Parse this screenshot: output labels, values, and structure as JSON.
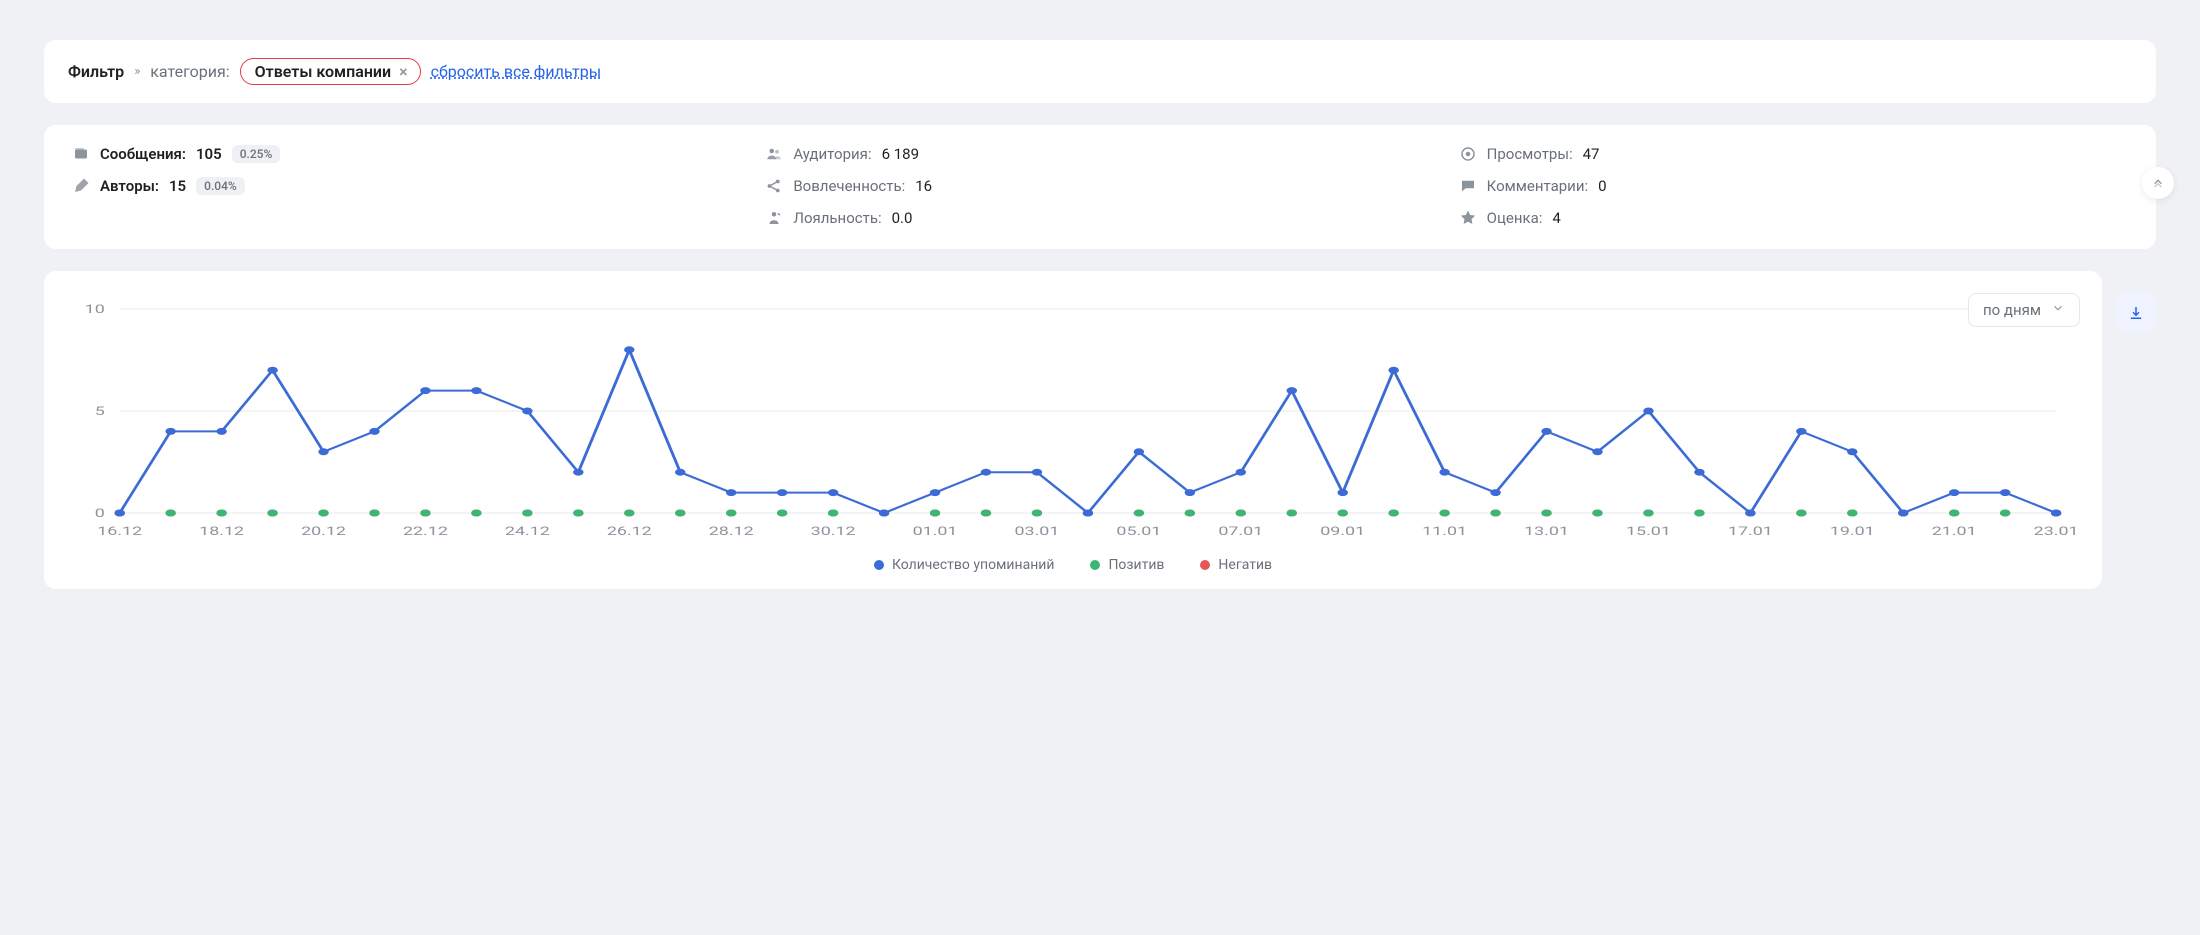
{
  "filter": {
    "title": "Фильтр",
    "category_label": "категория:",
    "chip_text": "Ответы компании",
    "reset_label": "сбросить все фильтры"
  },
  "stats": {
    "messages": {
      "label": "Сообщения:",
      "value": "105",
      "badge": "0.25%"
    },
    "audience": {
      "label": "Аудитория:",
      "value": "6 189"
    },
    "views": {
      "label": "Просмотры:",
      "value": "47"
    },
    "authors": {
      "label": "Авторы:",
      "value": "15",
      "badge": "0.04%"
    },
    "engagement": {
      "label": "Вовлеченность:",
      "value": "16"
    },
    "comments": {
      "label": "Комментарии:",
      "value": "0"
    },
    "loyalty": {
      "label": "Лояльность:",
      "value": "0.0"
    },
    "rating": {
      "label": "Оценка:",
      "value": "4"
    }
  },
  "dropdown": {
    "label": "по дням"
  },
  "chart": {
    "type": "line",
    "ylim": [
      0,
      10
    ],
    "yticks": [
      0,
      5,
      10
    ],
    "ytick_labels": [
      "0",
      "5",
      "10"
    ],
    "x_count": 39,
    "x_labels": [
      "16.12",
      "",
      "18.12",
      "",
      "20.12",
      "",
      "22.12",
      "",
      "24.12",
      "",
      "26.12",
      "",
      "28.12",
      "",
      "30.12",
      "",
      "01.01",
      "",
      "03.01",
      "",
      "05.01",
      "",
      "07.01",
      "",
      "09.01",
      "",
      "11.01",
      "",
      "13.01",
      "",
      "15.01",
      "",
      "17.01",
      "",
      "19.01",
      "",
      "21.01",
      "",
      "23.01"
    ],
    "mentions": [
      0,
      4,
      4,
      7,
      3,
      4,
      6,
      6,
      5,
      2,
      8,
      2,
      1,
      1,
      1,
      0,
      1,
      2,
      2,
      0,
      3,
      1,
      2,
      6,
      1,
      7,
      2,
      1,
      4,
      3,
      5,
      2,
      0,
      4,
      3,
      0,
      1,
      1,
      0
    ],
    "positive": [
      0,
      0,
      0,
      0,
      0,
      0,
      0,
      0,
      0,
      0,
      0,
      0,
      0,
      0,
      0,
      0,
      0,
      0,
      0,
      0,
      0,
      0,
      0,
      0,
      0,
      0,
      0,
      0,
      0,
      0,
      0,
      0,
      0,
      0,
      0,
      0,
      0,
      0,
      0
    ],
    "negative": [
      0,
      0,
      0,
      0,
      0,
      0,
      0,
      0,
      0,
      0,
      0,
      0,
      0,
      0,
      0,
      0,
      0,
      0,
      0,
      0,
      0,
      0,
      0,
      0,
      0,
      0,
      0,
      0,
      0,
      0,
      0,
      0,
      0,
      0,
      0,
      0,
      0,
      0,
      0
    ],
    "colors": {
      "mentions": "#3d6bd6",
      "positive": "#3bb675",
      "negative": "#e45757",
      "grid": "#e7e9ee",
      "axis_text": "#8e949e",
      "bg": "#ffffff"
    },
    "legend": {
      "mentions": "Количество упоминаний",
      "positive": "Позитив",
      "negative": "Негатив"
    },
    "marker_radius": 3.5,
    "line_width": 2,
    "label_fontsize": 12
  }
}
